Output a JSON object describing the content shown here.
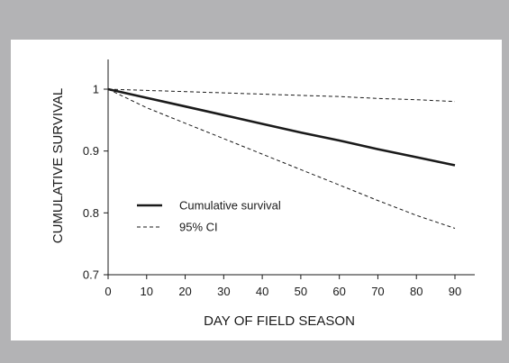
{
  "chart_data": {
    "type": "line",
    "xlabel": "DAY OF FIELD SEASON",
    "ylabel": "CUMULATIVE SURVIVAL",
    "xlim": [
      0,
      90
    ],
    "ylim": [
      0.7,
      1.0
    ],
    "x_ticks": [
      0,
      10,
      20,
      30,
      40,
      50,
      60,
      70,
      80,
      90
    ],
    "y_ticks": [
      0.7,
      0.8,
      0.9,
      1.0
    ],
    "x_tick_labels": [
      "0",
      "10",
      "20",
      "30",
      "40",
      "50",
      "60",
      "70",
      "80",
      "90"
    ],
    "y_tick_labels": [
      "0.7",
      "0.8",
      "0.9",
      "1"
    ],
    "grid": false,
    "legend_position": "center-left",
    "series": [
      {
        "name": "Cumulative survival",
        "style": "solid",
        "x": [
          0,
          10,
          20,
          30,
          40,
          50,
          60,
          70,
          80,
          90
        ],
        "values": [
          1.0,
          0.986,
          0.972,
          0.958,
          0.944,
          0.93,
          0.917,
          0.903,
          0.89,
          0.877
        ]
      },
      {
        "name": "95% CI",
        "style": "dashed",
        "x": [
          0,
          10,
          20,
          30,
          40,
          50,
          60,
          70,
          80,
          90
        ],
        "values": [
          1.0,
          0.998,
          0.996,
          0.994,
          0.992,
          0.99,
          0.988,
          0.985,
          0.983,
          0.98
        ]
      },
      {
        "name": "",
        "style": "dashed",
        "x": [
          0,
          10,
          20,
          30,
          40,
          50,
          60,
          70,
          80,
          90
        ],
        "values": [
          1.0,
          0.97,
          0.945,
          0.92,
          0.895,
          0.87,
          0.845,
          0.82,
          0.796,
          0.775
        ]
      }
    ]
  }
}
